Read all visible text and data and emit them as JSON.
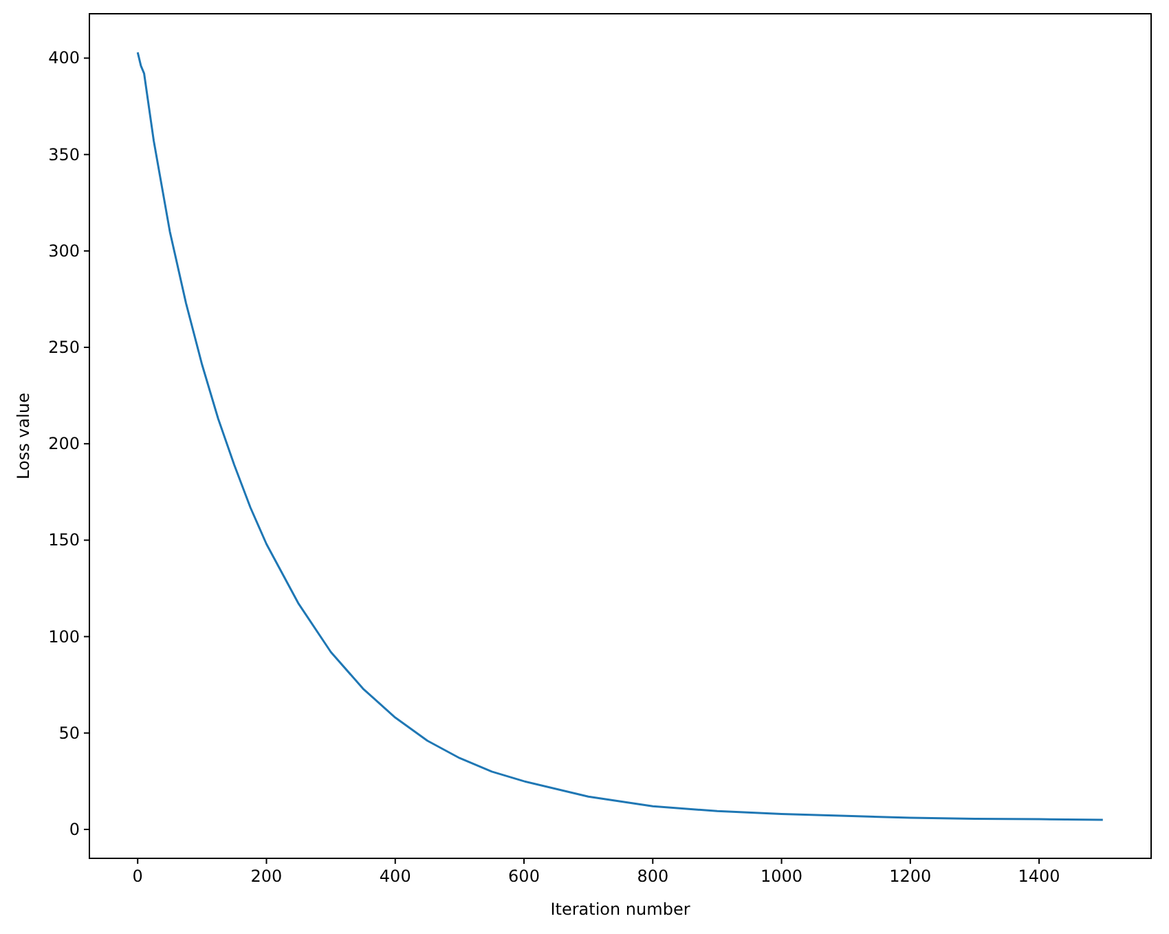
{
  "chart_data": {
    "type": "line",
    "xlabel": "Iteration number",
    "ylabel": "Loss value",
    "xlim": [
      -75,
      1574
    ],
    "ylim": [
      -15,
      423
    ],
    "xticks": [
      0,
      200,
      400,
      600,
      800,
      1000,
      1200,
      1400
    ],
    "yticks": [
      0,
      50,
      100,
      150,
      200,
      250,
      300,
      350,
      400
    ],
    "grid": false,
    "series": [
      {
        "color": "#1f77b4",
        "x": [
          0,
          5,
          10,
          25,
          50,
          75,
          100,
          125,
          150,
          175,
          200,
          250,
          300,
          350,
          400,
          450,
          500,
          550,
          600,
          700,
          800,
          900,
          1000,
          1100,
          1200,
          1300,
          1400,
          1499
        ],
        "values": [
          403,
          396,
          392,
          357,
          310,
          273,
          241,
          213,
          189,
          167,
          148,
          117,
          92,
          73,
          58,
          46,
          37,
          30,
          25,
          17,
          12,
          9.5,
          8,
          7,
          6,
          5.5,
          5.3,
          5
        ]
      }
    ]
  }
}
